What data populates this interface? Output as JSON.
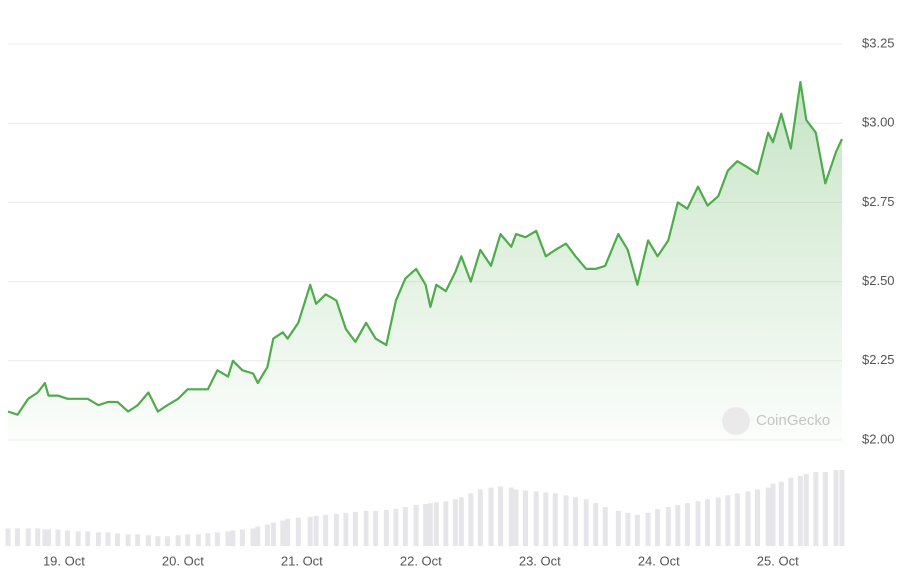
{
  "chart_data": {
    "type": "line",
    "color": "#4fab4c",
    "volume_color": "#e6e6ea",
    "watermark": "CoinGecko",
    "grid": true,
    "x": [
      18.53,
      18.61,
      18.7,
      18.78,
      18.84,
      18.87,
      18.95,
      19.03,
      19.12,
      19.2,
      19.29,
      19.37,
      19.45,
      19.54,
      19.62,
      19.71,
      19.79,
      19.87,
      19.96,
      20.04,
      20.13,
      20.21,
      20.29,
      20.38,
      20.42,
      20.5,
      20.59,
      20.63,
      20.71,
      20.76,
      20.84,
      20.88,
      20.97,
      21.07,
      21.12,
      21.2,
      21.29,
      21.37,
      21.45,
      21.54,
      21.62,
      21.71,
      21.79,
      21.87,
      21.96,
      22.04,
      22.08,
      22.13,
      22.21,
      22.29,
      22.34,
      22.42,
      22.5,
      22.59,
      22.67,
      22.76,
      22.8,
      22.88,
      22.97,
      23.05,
      23.13,
      23.22,
      23.3,
      23.39,
      23.47,
      23.55,
      23.66,
      23.74,
      23.82,
      23.91,
      23.99,
      24.08,
      24.16,
      24.24,
      24.33,
      24.41,
      24.5,
      24.58,
      24.66,
      24.75,
      24.83,
      24.92,
      24.96,
      25.03,
      25.11,
      25.19,
      25.24,
      25.32,
      25.4,
      25.49,
      25.54
    ],
    "values": [
      2.09,
      2.08,
      2.13,
      2.15,
      2.18,
      2.14,
      2.14,
      2.13,
      2.13,
      2.13,
      2.11,
      2.12,
      2.12,
      2.09,
      2.11,
      2.15,
      2.09,
      2.11,
      2.13,
      2.16,
      2.16,
      2.16,
      2.22,
      2.2,
      2.25,
      2.22,
      2.21,
      2.18,
      2.23,
      2.32,
      2.34,
      2.32,
      2.37,
      2.49,
      2.43,
      2.46,
      2.44,
      2.35,
      2.31,
      2.37,
      2.32,
      2.3,
      2.44,
      2.51,
      2.54,
      2.49,
      2.42,
      2.49,
      2.47,
      2.53,
      2.58,
      2.5,
      2.6,
      2.55,
      2.65,
      2.61,
      2.65,
      2.64,
      2.66,
      2.58,
      2.6,
      2.62,
      2.58,
      2.54,
      2.54,
      2.55,
      2.65,
      2.6,
      2.49,
      2.63,
      2.58,
      2.63,
      2.75,
      2.73,
      2.8,
      2.74,
      2.77,
      2.85,
      2.88,
      2.86,
      2.84,
      2.97,
      2.94,
      3.03,
      2.92,
      3.13,
      3.01,
      2.97,
      2.81,
      2.91,
      2.95
    ],
    "volume": [
      18,
      18,
      18,
      18,
      17,
      17,
      17,
      16,
      15,
      15,
      14,
      14,
      13,
      12,
      12,
      11,
      10,
      10,
      11,
      12,
      12,
      13,
      14,
      15,
      16,
      17,
      18,
      20,
      22,
      24,
      26,
      28,
      29,
      30,
      31,
      32,
      33,
      34,
      35,
      36,
      36,
      37,
      38,
      40,
      42,
      43,
      44,
      45,
      46,
      48,
      50,
      54,
      58,
      60,
      61,
      60,
      58,
      57,
      56,
      55,
      54,
      52,
      50,
      48,
      44,
      40,
      36,
      34,
      32,
      34,
      38,
      40,
      42,
      44,
      46,
      48,
      50,
      52,
      54,
      56,
      58,
      60,
      64,
      66,
      70,
      72,
      74,
      76,
      76,
      78,
      78
    ],
    "xlim": [
      18.53,
      25.54
    ],
    "xticks": [
      {
        "value": 19,
        "label": "19. Oct"
      },
      {
        "value": 20,
        "label": "20. Oct"
      },
      {
        "value": 21,
        "label": "21. Oct"
      },
      {
        "value": 22,
        "label": "22. Oct"
      },
      {
        "value": 23,
        "label": "23. Oct"
      },
      {
        "value": 24,
        "label": "24. Oct"
      },
      {
        "value": 25,
        "label": "25. Oct"
      }
    ],
    "ylim": [
      2.0,
      3.25
    ],
    "yticks": [
      {
        "value": 2.0,
        "label": "$2.00"
      },
      {
        "value": 2.25,
        "label": "$2.25"
      },
      {
        "value": 2.5,
        "label": "$2.50"
      },
      {
        "value": 2.75,
        "label": "$2.75"
      },
      {
        "value": 3.0,
        "label": "$3.00"
      },
      {
        "value": 3.25,
        "label": "$3.25"
      }
    ]
  }
}
